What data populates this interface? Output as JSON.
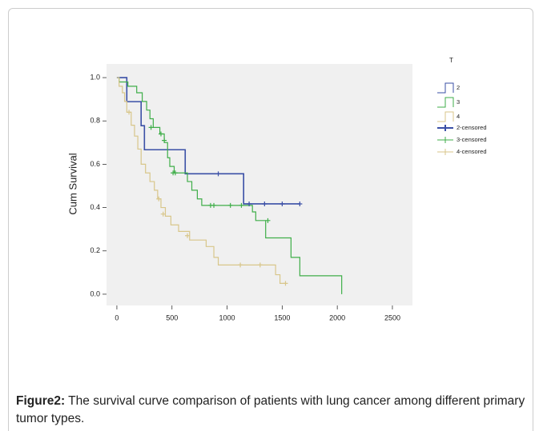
{
  "chart_data": {
    "type": "survival",
    "y_label": "Cum Survival",
    "legend_title": "T",
    "xlim": [
      -94,
      2682
    ],
    "ylim": [
      -0.052,
      1.063
    ],
    "xticks": [
      0,
      500,
      1000,
      1500,
      2000,
      2500
    ],
    "yticks": [
      {
        "value": 0,
        "label": "0.0"
      },
      0.2,
      0.4,
      0.6,
      0.8,
      {
        "value": 1,
        "label": "1.0"
      }
    ],
    "series": [
      {
        "name": "2",
        "color": "#3a4fa6",
        "style": "step",
        "x": [
          0,
          90,
          220,
          250,
          620,
          1150,
          1660
        ],
        "values": [
          1.0,
          0.889,
          0.778,
          0.667,
          0.556,
          0.417,
          0.417
        ]
      },
      {
        "name": "3",
        "color": "#3fae49",
        "style": "step",
        "x": [
          0,
          20,
          100,
          180,
          230,
          270,
          300,
          330,
          390,
          430,
          460,
          480,
          520,
          640,
          680,
          730,
          770,
          1130,
          1230,
          1260,
          1350,
          1580,
          1660,
          2040,
          2040
        ],
        "values": [
          1.0,
          0.98,
          0.96,
          0.93,
          0.89,
          0.85,
          0.81,
          0.77,
          0.74,
          0.7,
          0.63,
          0.59,
          0.56,
          0.52,
          0.48,
          0.44,
          0.41,
          0.41,
          0.38,
          0.34,
          0.26,
          0.17,
          0.085,
          0.085,
          0.0
        ]
      },
      {
        "name": "4",
        "color": "#d8c68a",
        "style": "step",
        "x": [
          0,
          20,
          50,
          70,
          90,
          130,
          160,
          190,
          220,
          260,
          300,
          340,
          370,
          400,
          440,
          490,
          560,
          660,
          810,
          880,
          920,
          1350,
          1440,
          1480,
          1530
        ],
        "values": [
          1.0,
          0.96,
          0.93,
          0.89,
          0.84,
          0.78,
          0.73,
          0.67,
          0.6,
          0.56,
          0.52,
          0.48,
          0.44,
          0.4,
          0.36,
          0.32,
          0.29,
          0.25,
          0.22,
          0.17,
          0.135,
          0.135,
          0.09,
          0.05,
          0.05
        ]
      },
      {
        "name": "2-censored",
        "color": "#3a4fa6",
        "style": "censor",
        "x": [
          920,
          1200,
          1340,
          1500,
          1660
        ],
        "values": [
          0.556,
          0.417,
          0.417,
          0.417,
          0.417
        ]
      },
      {
        "name": "3-censored",
        "color": "#3fae49",
        "style": "censor",
        "x": [
          310,
          400,
          430,
          510,
          530,
          850,
          880,
          1030,
          1130,
          1370
        ],
        "values": [
          0.77,
          0.74,
          0.71,
          0.56,
          0.56,
          0.41,
          0.41,
          0.41,
          0.41,
          0.34
        ]
      },
      {
        "name": "4-censored",
        "color": "#d8c68a",
        "style": "censor",
        "x": [
          110,
          380,
          420,
          640,
          1120,
          1300,
          1530
        ],
        "values": [
          0.84,
          0.44,
          0.37,
          0.27,
          0.135,
          0.135,
          0.05
        ]
      }
    ]
  },
  "caption": {
    "label": "Figure2:",
    "text": " The survival curve comparison of patients with lung cancer among different primary tumor types."
  }
}
